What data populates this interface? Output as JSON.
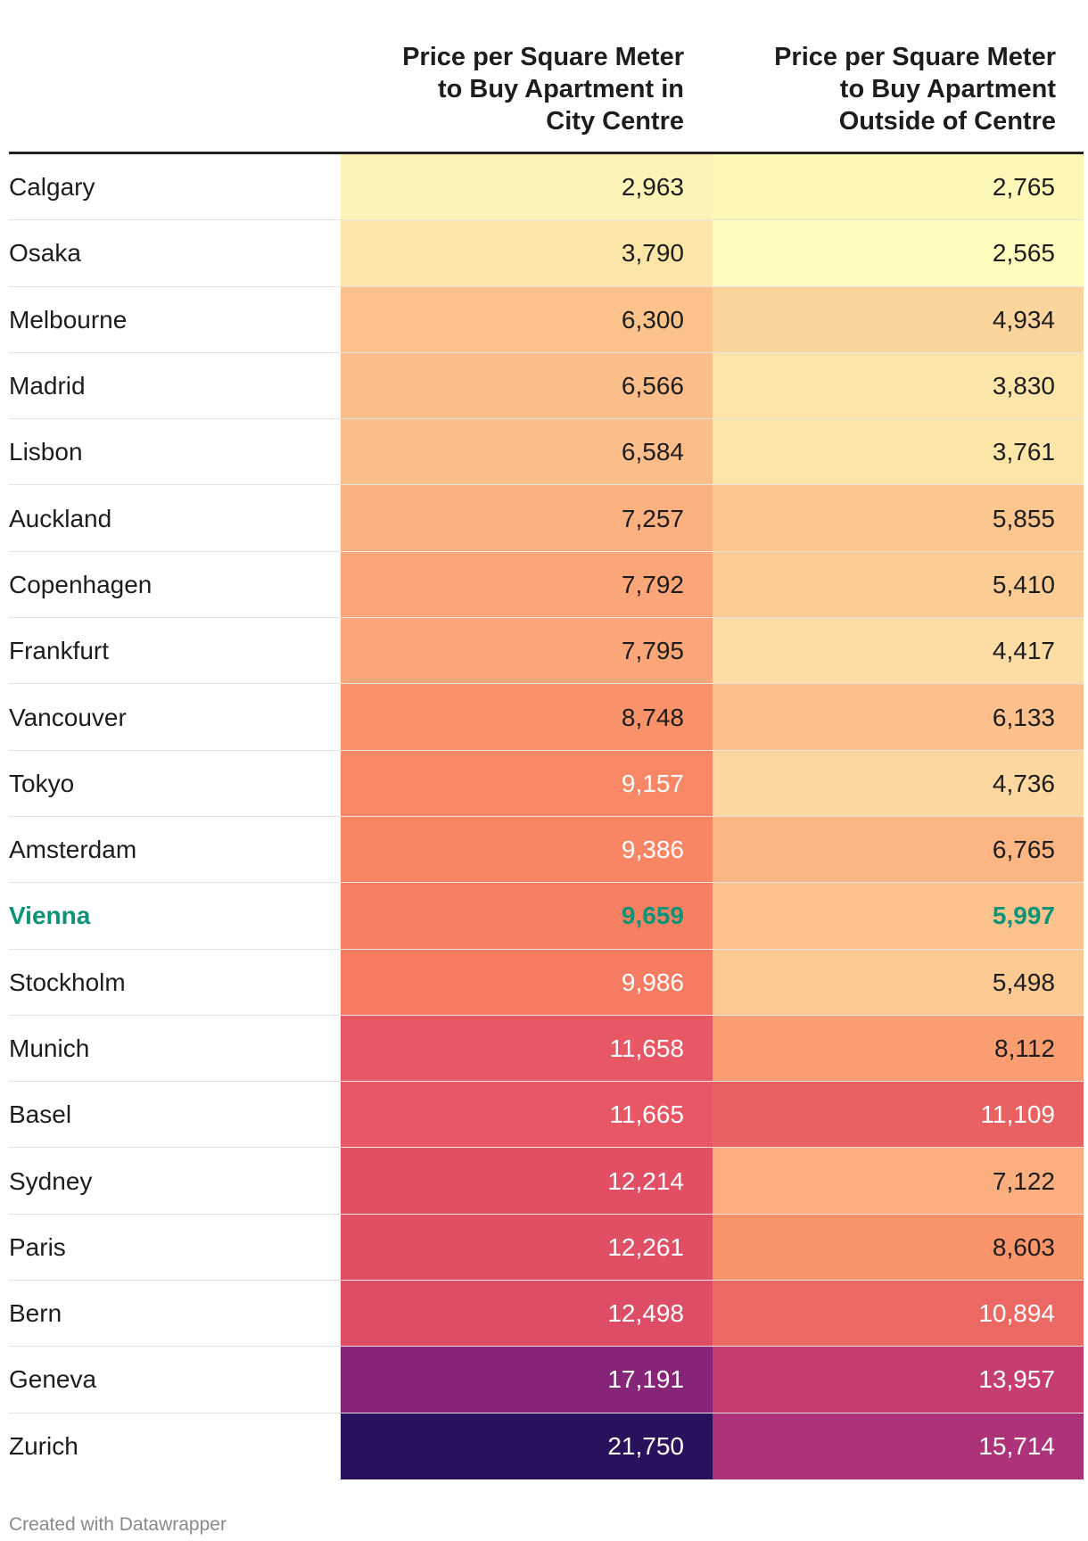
{
  "chart_data": {
    "type": "table",
    "title": "",
    "columns": [
      "",
      "Price per Square Meter to Buy Apartment in City Centre",
      "Price per Square Meter to Buy Apartment Outside of Centre"
    ],
    "rows": [
      {
        "city": "Calgary",
        "centre": "2,963",
        "outside": "2,765",
        "c1": "#fcf3b7",
        "c2": "#fdf8b8"
      },
      {
        "city": "Osaka",
        "centre": "3,790",
        "outside": "2,565",
        "c1": "#fbe5a7",
        "c2": "#fdfcbd"
      },
      {
        "city": "Melbourne",
        "centre": "6,300",
        "outside": "4,934",
        "c1": "#fbc28b",
        "c2": "#fcd59d"
      },
      {
        "city": "Madrid",
        "centre": "6,566",
        "outside": "3,830",
        "c1": "#fbbe8a",
        "c2": "#fbe5a8"
      },
      {
        "city": "Lisbon",
        "centre": "6,584",
        "outside": "3,761",
        "c1": "#fbbd89",
        "c2": "#fbe6a8"
      },
      {
        "city": "Auckland",
        "centre": "7,257",
        "outside": "5,855",
        "c1": "#fbb07f",
        "c2": "#fbc58e"
      },
      {
        "city": "Copenhagen",
        "centre": "7,792",
        "outside": "5,410",
        "c1": "#fba678",
        "c2": "#fbcc94"
      },
      {
        "city": "Frankfurt",
        "centre": "7,795",
        "outside": "4,417",
        "c1": "#fba678",
        "c2": "#fcdca2"
      },
      {
        "city": "Vancouver",
        "centre": "8,748",
        "outside": "6,133",
        "c1": "#f99169",
        "c2": "#fbc08b"
      },
      {
        "city": "Tokyo",
        "centre": "9,157",
        "outside": "4,736",
        "c1": "#f88865",
        "c2": "#fcd79f"
      },
      {
        "city": "Amsterdam",
        "centre": "9,386",
        "outside": "6,765",
        "c1": "#f88564",
        "c2": "#fbb684"
      },
      {
        "city": "Vienna",
        "centre": "9,659",
        "outside": "5,997",
        "c1": "#f78063",
        "c2": "#fbc28c"
      },
      {
        "city": "Stockholm",
        "centre": "9,986",
        "outside": "5,498",
        "c1": "#f57b63",
        "c2": "#fbca93"
      },
      {
        "city": "Munich",
        "centre": "11,658",
        "outside": "8,112",
        "c1": "#e75864",
        "c2": "#fa9e72"
      },
      {
        "city": "Basel",
        "centre": "11,665",
        "outside": "11,109",
        "c1": "#e75864",
        "c2": "#ea6161"
      },
      {
        "city": "Sydney",
        "centre": "12,214",
        "outside": "7,122",
        "c1": "#e24f65",
        "c2": "#fbae7e"
      },
      {
        "city": "Paris",
        "centre": "12,261",
        "outside": "8,603",
        "c1": "#e14f65",
        "c2": "#f9946b"
      },
      {
        "city": "Bern",
        "centre": "12,498",
        "outside": "10,894",
        "c1": "#de4d66",
        "c2": "#ec6862"
      },
      {
        "city": "Geneva",
        "centre": "17,191",
        "outside": "13,957",
        "c1": "#862478",
        "c2": "#c63d71"
      },
      {
        "city": "Zurich",
        "centre": "21,750",
        "outside": "15,714",
        "c1": "#2a115c",
        "c2": "#ad3378"
      }
    ],
    "highlight": "Vienna"
  },
  "header": {
    "col1": "Price per Square Meter to Buy Apartment in City Centre",
    "col2": "Price per Square Meter to Buy Apartment Outside of Centre"
  },
  "footer": {
    "credit": "Created with Datawrapper"
  }
}
